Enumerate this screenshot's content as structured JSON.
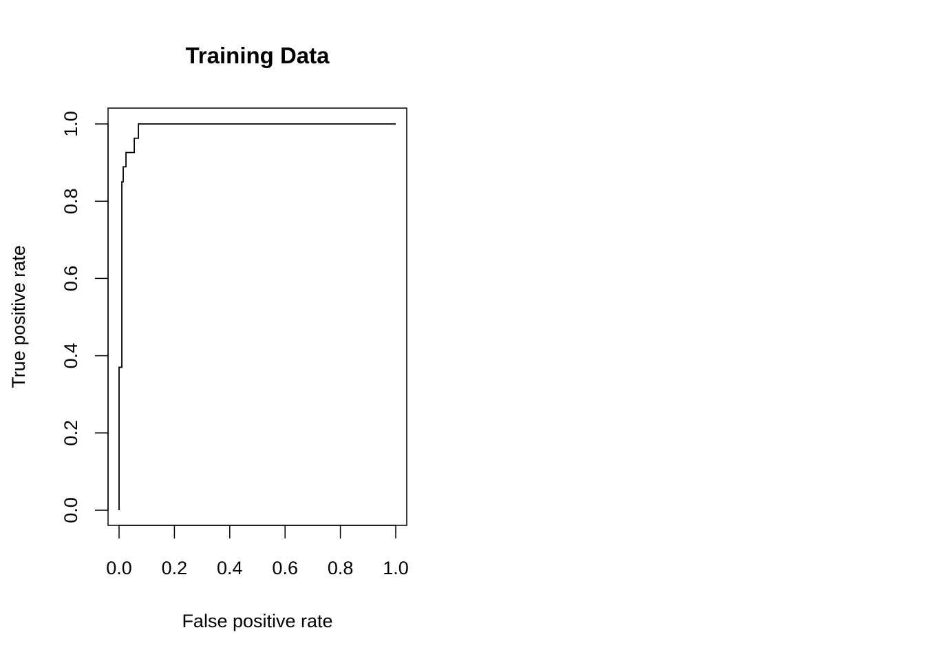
{
  "chart_data": {
    "type": "line",
    "title": "Training Data",
    "xlabel": "False positive rate",
    "ylabel": "True positive rate",
    "xlim": [
      0,
      1
    ],
    "ylim": [
      0,
      1
    ],
    "x_ticks": [
      "0.0",
      "0.2",
      "0.4",
      "0.6",
      "0.8",
      "1.0"
    ],
    "y_ticks": [
      "0.0",
      "0.2",
      "0.4",
      "0.6",
      "0.8",
      "1.0"
    ],
    "grid": false,
    "line_color": "#000000",
    "series": [
      {
        "x": [
          0.0,
          0.0,
          0.01,
          0.01,
          0.015,
          0.015,
          0.025,
          0.025,
          0.055,
          0.055,
          0.07,
          0.07,
          0.08,
          0.08,
          1.0
        ],
        "y": [
          0.0,
          0.37,
          0.37,
          0.85,
          0.85,
          0.889,
          0.889,
          0.926,
          0.926,
          0.963,
          0.963,
          1.0,
          1.0,
          1.0,
          1.0
        ]
      }
    ]
  }
}
